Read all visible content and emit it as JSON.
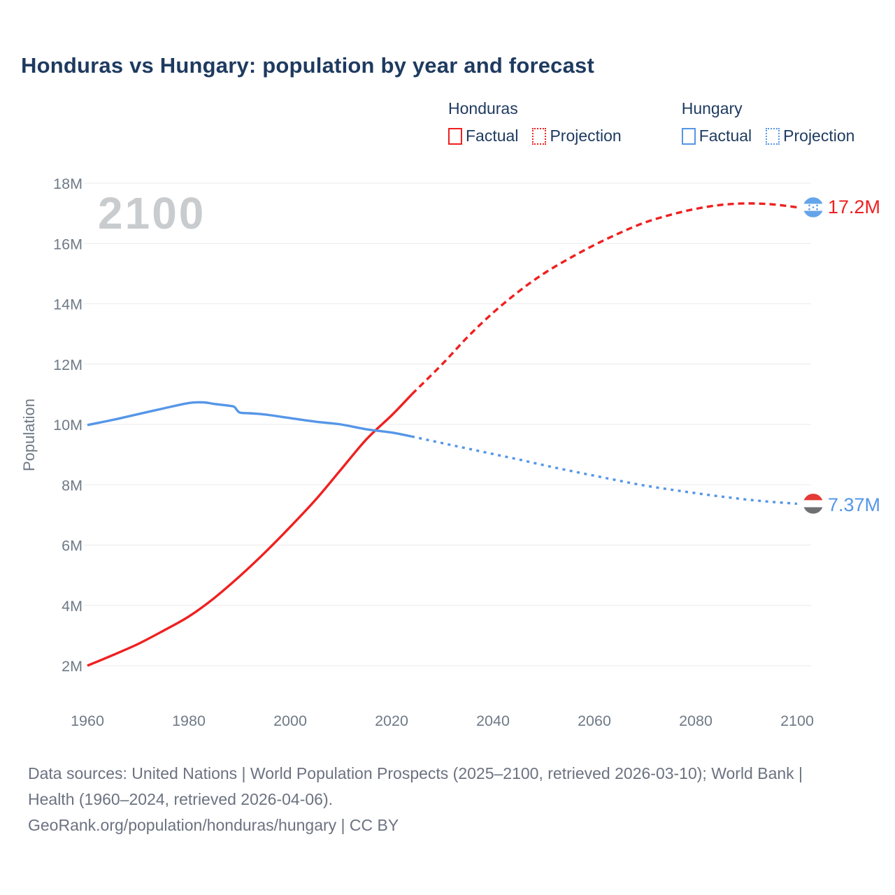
{
  "page": {
    "title": "Honduras vs Hungary: population by year and forecast",
    "watermark": "2100"
  },
  "legend": {
    "groups": [
      {
        "label": "Honduras",
        "items": [
          {
            "label": "Factual",
            "style": "solid",
            "color": "#ef2020"
          },
          {
            "label": "Projection",
            "style": "dotted",
            "color": "#ef2020"
          }
        ]
      },
      {
        "label": "Hungary",
        "items": [
          {
            "label": "Factual",
            "style": "solid",
            "color": "#5596e8"
          },
          {
            "label": "Projection",
            "style": "dotted",
            "color": "#5596e8"
          }
        ]
      }
    ]
  },
  "footer": {
    "line1": "Data sources: United Nations | World Population Prospects (2025–2100, retrieved 2026-03-10); World Bank | Health (1960–2024, retrieved 2026-04-06).",
    "line2": "GeoRank.org/population/honduras/hungary | CC BY"
  },
  "chart_data": {
    "type": "line",
    "title": "Honduras vs Hungary: population by year and forecast",
    "xlabel": "",
    "ylabel": "Population",
    "ylim": [
      2,
      18
    ],
    "xlim": [
      1960,
      2100
    ],
    "grid": true,
    "grid_color": "#ebebeb",
    "tick_color": "#6e7a87",
    "yticks": [
      {
        "label": "18M",
        "value": 18
      },
      {
        "label": "16M",
        "value": 16
      },
      {
        "label": "14M",
        "value": 14
      },
      {
        "label": "12M",
        "value": 12
      },
      {
        "label": "10M",
        "value": 10
      },
      {
        "label": "8M",
        "value": 8
      },
      {
        "label": "6M",
        "value": 6
      },
      {
        "label": "4M",
        "value": 4
      },
      {
        "label": "2M",
        "value": 2
      }
    ],
    "xticks": [
      {
        "label": "1960",
        "year": 1960
      },
      {
        "label": "1980",
        "year": 1980
      },
      {
        "label": "2000",
        "year": 2000
      },
      {
        "label": "2020",
        "year": 2020
      },
      {
        "label": "2040",
        "year": 2040
      },
      {
        "label": "2060",
        "year": 2060
      },
      {
        "label": "2080",
        "year": 2080
      },
      {
        "label": "2100",
        "year": 2100
      }
    ],
    "series": [
      {
        "id": "honduras-factual",
        "name": "Honduras Factual",
        "color": "#ef2020",
        "dash": null,
        "width": 3.4,
        "x": [
          1960,
          1965,
          1970,
          1975,
          1980,
          1985,
          1990,
          1995,
          2000,
          2005,
          2010,
          2015,
          2020,
          2024
        ],
        "y": [
          2.0,
          2.35,
          2.72,
          3.16,
          3.63,
          4.24,
          4.96,
          5.75,
          6.6,
          7.5,
          8.5,
          9.5,
          10.3,
          11.0
        ]
      },
      {
        "id": "honduras-projection",
        "name": "Honduras Projection",
        "color": "#ef2020",
        "dash": "9 6",
        "width": 3.4,
        "x": [
          2024,
          2030,
          2035,
          2040,
          2045,
          2050,
          2055,
          2060,
          2065,
          2070,
          2075,
          2080,
          2085,
          2090,
          2095,
          2100
        ],
        "y": [
          11.0,
          12.0,
          12.9,
          13.7,
          14.4,
          15.0,
          15.5,
          15.95,
          16.35,
          16.7,
          16.95,
          17.15,
          17.28,
          17.33,
          17.3,
          17.2
        ]
      },
      {
        "id": "hungary-factual",
        "name": "Hungary Factual",
        "color": "#5596e8",
        "dash": null,
        "width": 3.4,
        "x": [
          1960,
          1965,
          1970,
          1975,
          1980,
          1983,
          1985,
          1988,
          1989,
          1990,
          1992,
          1995,
          2000,
          2005,
          2010,
          2015,
          2020,
          2024
        ],
        "y": [
          9.98,
          10.15,
          10.34,
          10.53,
          10.71,
          10.73,
          10.68,
          10.62,
          10.58,
          10.4,
          10.37,
          10.33,
          10.21,
          10.09,
          10.0,
          9.84,
          9.73,
          9.6
        ]
      },
      {
        "id": "hungary-projection",
        "name": "Hungary Projection",
        "color": "#5596e8",
        "dash": "4 6.5",
        "width": 3.4,
        "x": [
          2024,
          2030,
          2035,
          2040,
          2045,
          2050,
          2055,
          2060,
          2065,
          2070,
          2075,
          2080,
          2085,
          2090,
          2095,
          2100
        ],
        "y": [
          9.6,
          9.38,
          9.2,
          9.02,
          8.84,
          8.65,
          8.47,
          8.3,
          8.13,
          7.97,
          7.84,
          7.72,
          7.61,
          7.51,
          7.43,
          7.37
        ]
      }
    ],
    "end_markers": [
      {
        "id": "honduras",
        "label": "17.2M",
        "value": 17.2,
        "label_color": "#ef2020",
        "flag": "honduras-flag",
        "bands": [
          "#64a4ea",
          "#ffffff",
          "#64a4ea"
        ],
        "star_color": "#64a4ea"
      },
      {
        "id": "hungary",
        "label": "7.37M",
        "value": 7.37,
        "label_color": "#5596e8",
        "flag": "hungary-flag",
        "bands": [
          "#e53935",
          "#ffffff",
          "#6f7072"
        ],
        "star_color": null
      }
    ]
  }
}
